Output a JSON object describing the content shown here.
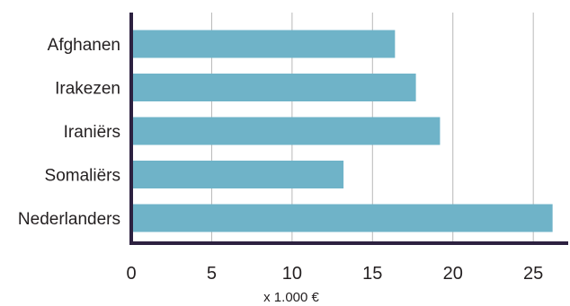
{
  "chart_data": {
    "type": "bar",
    "orientation": "horizontal",
    "categories": [
      "Afghanen",
      "Irakezen",
      "Iraniërs",
      "Somaliërs",
      "Nederlanders"
    ],
    "values": [
      16.4,
      17.7,
      19.2,
      13.2,
      26.2
    ],
    "xlim": [
      0,
      26.5
    ],
    "xticks": [
      "0",
      "5",
      "10",
      "15",
      "20",
      "25"
    ],
    "xlabel": "x 1.000 €",
    "grid": "vertical",
    "bar_color": "#6fb3c8",
    "axis_color": "#2d2140",
    "grid_color": "#b8b8b8"
  }
}
